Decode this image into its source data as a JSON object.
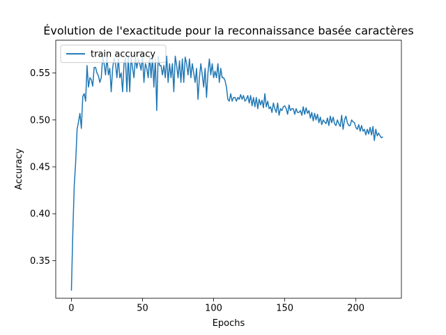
{
  "chart_data": {
    "type": "line",
    "title": "Évolution de l'exactitude pour la reconnaissance basée caractères",
    "xlabel": "Epochs",
    "ylabel": "Accuracy",
    "xlim": [
      -11,
      232
    ],
    "ylim": [
      0.31,
      0.585
    ],
    "x_ticks": [
      0,
      50,
      100,
      150,
      200
    ],
    "y_ticks": [
      0.35,
      0.4,
      0.45,
      0.5,
      0.55
    ],
    "x_tick_labels": [
      "0",
      "50",
      "100",
      "150",
      "200"
    ],
    "y_tick_labels": [
      "0.35",
      "0.40",
      "0.45",
      "0.50",
      "0.55"
    ],
    "grid": false,
    "legend_position": "upper left",
    "series": [
      {
        "name": "train accuracy",
        "color": "#1f77b4",
        "keypoints": [
          [
            0,
            0.318
          ],
          [
            1,
            0.38
          ],
          [
            2,
            0.43
          ],
          [
            3,
            0.455
          ],
          [
            4,
            0.49
          ],
          [
            5,
            0.498
          ],
          [
            6,
            0.507
          ],
          [
            7,
            0.491
          ],
          [
            8,
            0.525
          ],
          [
            9,
            0.528
          ],
          [
            10,
            0.52
          ],
          [
            11,
            0.558
          ],
          [
            12,
            0.535
          ],
          [
            13,
            0.545
          ],
          [
            14,
            0.543
          ],
          [
            15,
            0.536
          ],
          [
            16,
            0.556
          ],
          [
            17,
            0.556
          ],
          [
            18,
            0.55
          ],
          [
            19,
            0.547
          ],
          [
            20,
            0.54
          ],
          [
            21,
            0.545
          ],
          [
            22,
            0.567
          ],
          [
            23,
            0.56
          ],
          [
            24,
            0.548
          ],
          [
            25,
            0.567
          ],
          [
            26,
            0.548
          ],
          [
            27,
            0.555
          ],
          [
            28,
            0.53
          ],
          [
            29,
            0.555
          ],
          [
            30,
            0.566
          ],
          [
            31,
            0.56
          ],
          [
            32,
            0.545
          ],
          [
            33,
            0.566
          ],
          [
            34,
            0.545
          ],
          [
            35,
            0.55
          ],
          [
            36,
            0.53
          ],
          [
            37,
            0.56
          ],
          [
            38,
            0.566
          ],
          [
            39,
            0.53
          ],
          [
            40,
            0.568
          ],
          [
            41,
            0.53
          ],
          [
            42,
            0.568
          ],
          [
            43,
            0.555
          ],
          [
            44,
            0.545
          ],
          [
            45,
            0.567
          ],
          [
            46,
            0.555
          ],
          [
            47,
            0.565
          ],
          [
            48,
            0.56
          ],
          [
            49,
            0.553
          ],
          [
            50,
            0.568
          ],
          [
            51,
            0.54
          ],
          [
            52,
            0.56
          ],
          [
            53,
            0.555
          ],
          [
            54,
            0.545
          ],
          [
            55,
            0.568
          ],
          [
            56,
            0.545
          ],
          [
            57,
            0.567
          ],
          [
            58,
            0.535
          ],
          [
            59,
            0.565
          ],
          [
            60,
            0.51
          ],
          [
            61,
            0.568
          ],
          [
            62,
            0.558
          ],
          [
            63,
            0.558
          ],
          [
            64,
            0.548
          ],
          [
            65,
            0.558
          ],
          [
            66,
            0.545
          ],
          [
            67,
            0.568
          ],
          [
            68,
            0.54
          ],
          [
            69,
            0.56
          ],
          [
            70,
            0.545
          ],
          [
            71,
            0.56
          ],
          [
            72,
            0.53
          ],
          [
            73,
            0.568
          ],
          [
            74,
            0.558
          ],
          [
            75,
            0.545
          ],
          [
            76,
            0.563
          ],
          [
            77,
            0.54
          ],
          [
            78,
            0.565
          ],
          [
            79,
            0.54
          ],
          [
            80,
            0.567
          ],
          [
            81,
            0.56
          ],
          [
            82,
            0.548
          ],
          [
            83,
            0.565
          ],
          [
            84,
            0.545
          ],
          [
            85,
            0.56
          ],
          [
            86,
            0.55
          ],
          [
            87,
            0.54
          ],
          [
            88,
            0.555
          ],
          [
            89,
            0.522
          ],
          [
            90,
            0.545
          ],
          [
            91,
            0.56
          ],
          [
            92,
            0.548
          ],
          [
            93,
            0.535
          ],
          [
            94,
            0.555
          ],
          [
            95,
            0.524
          ],
          [
            96,
            0.55
          ],
          [
            97,
            0.565
          ],
          [
            98,
            0.548
          ],
          [
            99,
            0.56
          ],
          [
            100,
            0.545
          ],
          [
            101,
            0.552
          ],
          [
            102,
            0.545
          ],
          [
            103,
            0.56
          ],
          [
            104,
            0.54
          ],
          [
            105,
            0.555
          ],
          [
            106,
            0.545
          ],
          [
            107,
            0.545
          ],
          [
            108,
            0.542
          ],
          [
            109,
            0.535
          ],
          [
            110,
            0.522
          ],
          [
            111,
            0.52
          ],
          [
            112,
            0.528
          ],
          [
            113,
            0.52
          ],
          [
            114,
            0.524
          ],
          [
            115,
            0.524
          ],
          [
            116,
            0.52
          ],
          [
            117,
            0.524
          ],
          [
            118,
            0.522
          ],
          [
            119,
            0.527
          ],
          [
            120,
            0.522
          ],
          [
            121,
            0.526
          ],
          [
            122,
            0.52
          ],
          [
            123,
            0.522
          ],
          [
            124,
            0.526
          ],
          [
            125,
            0.518
          ],
          [
            126,
            0.526
          ],
          [
            127,
            0.515
          ],
          [
            128,
            0.524
          ],
          [
            129,
            0.514
          ],
          [
            130,
            0.524
          ],
          [
            131,
            0.512
          ],
          [
            132,
            0.522
          ],
          [
            133,
            0.516
          ],
          [
            134,
            0.521
          ],
          [
            135,
            0.513
          ],
          [
            136,
            0.528
          ],
          [
            137,
            0.514
          ],
          [
            138,
            0.52
          ],
          [
            139,
            0.512
          ],
          [
            140,
            0.514
          ],
          [
            141,
            0.508
          ],
          [
            142,
            0.518
          ],
          [
            143,
            0.512
          ],
          [
            144,
            0.508
          ],
          [
            145,
            0.518
          ],
          [
            146,
            0.505
          ],
          [
            147,
            0.512
          ],
          [
            148,
            0.51
          ],
          [
            149,
            0.514
          ],
          [
            150,
            0.515
          ],
          [
            151,
            0.512
          ],
          [
            152,
            0.506
          ],
          [
            153,
            0.516
          ],
          [
            154,
            0.51
          ],
          [
            155,
            0.512
          ],
          [
            156,
            0.512
          ],
          [
            157,
            0.506
          ],
          [
            158,
            0.512
          ],
          [
            159,
            0.508
          ],
          [
            160,
            0.508
          ],
          [
            161,
            0.51
          ],
          [
            162,
            0.505
          ],
          [
            163,
            0.514
          ],
          [
            164,
            0.506
          ],
          [
            165,
            0.513
          ],
          [
            166,
            0.507
          ],
          [
            167,
            0.51
          ],
          [
            168,
            0.502
          ],
          [
            169,
            0.508
          ],
          [
            170,
            0.499
          ],
          [
            171,
            0.507
          ],
          [
            172,
            0.5
          ],
          [
            173,
            0.506
          ],
          [
            174,
            0.497
          ],
          [
            175,
            0.503
          ],
          [
            176,
            0.495
          ],
          [
            177,
            0.5
          ],
          [
            178,
            0.498
          ],
          [
            179,
            0.496
          ],
          [
            180,
            0.502
          ],
          [
            181,
            0.494
          ],
          [
            182,
            0.504
          ],
          [
            183,
            0.497
          ],
          [
            184,
            0.503
          ],
          [
            185,
            0.496
          ],
          [
            186,
            0.494
          ],
          [
            187,
            0.5
          ],
          [
            188,
            0.496
          ],
          [
            189,
            0.493
          ],
          [
            190,
            0.505
          ],
          [
            191,
            0.49
          ],
          [
            192,
            0.5
          ],
          [
            193,
            0.504
          ],
          [
            194,
            0.497
          ],
          [
            195,
            0.494
          ],
          [
            196,
            0.494
          ],
          [
            197,
            0.5
          ],
          [
            198,
            0.498
          ],
          [
            199,
            0.497
          ],
          [
            200,
            0.492
          ],
          [
            201,
            0.49
          ],
          [
            202,
            0.495
          ],
          [
            203,
            0.488
          ],
          [
            204,
            0.494
          ],
          [
            205,
            0.488
          ],
          [
            206,
            0.49
          ],
          [
            207,
            0.484
          ],
          [
            208,
            0.49
          ],
          [
            209,
            0.485
          ],
          [
            210,
            0.492
          ],
          [
            211,
            0.484
          ],
          [
            212,
            0.493
          ],
          [
            213,
            0.478
          ],
          [
            214,
            0.49
          ],
          [
            215,
            0.483
          ],
          [
            216,
            0.486
          ],
          [
            217,
            0.483
          ],
          [
            218,
            0.481
          ],
          [
            219,
            0.482
          ]
        ]
      }
    ]
  }
}
